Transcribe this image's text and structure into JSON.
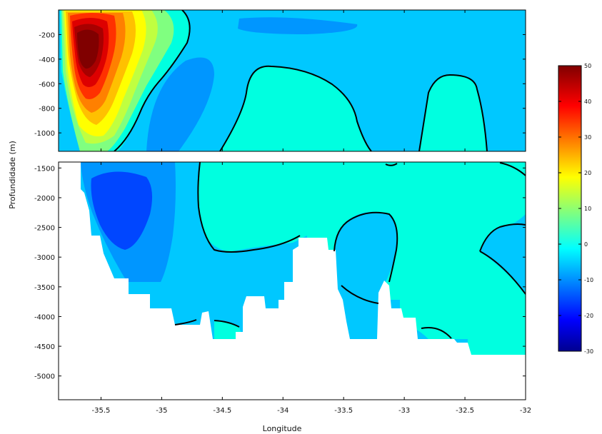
{
  "chart_data": {
    "type": "contour",
    "xlabel": "Longitude",
    "ylabel": "Profundidade (m)",
    "xlim": [
      -35.85,
      -32
    ],
    "x_ticks": [
      -35.5,
      -35,
      -34.5,
      -34,
      -33.5,
      -33,
      -32.5,
      -32
    ],
    "x_tick_labels": [
      "-35.5",
      "-35",
      "-34.5",
      "-34",
      "-33.5",
      "-33",
      "-32.5",
      "-32"
    ],
    "panels": [
      {
        "name": "upper",
        "ylim": [
          -1150,
          0
        ],
        "y_ticks": [
          -200,
          -400,
          -600,
          -800,
          -1000
        ],
        "y_tick_labels": [
          "-200",
          "-400",
          "-600",
          "-800",
          "-1000"
        ]
      },
      {
        "name": "lower",
        "ylim": [
          -5400,
          -1400
        ],
        "y_ticks": [
          -1500,
          -2000,
          -2500,
          -3000,
          -3500,
          -4000,
          -4500,
          -5000
        ],
        "y_tick_labels": [
          "-1500",
          "-2000",
          "-2500",
          "-3000",
          "-3500",
          "-4000",
          "-4500",
          "-5000"
        ]
      }
    ],
    "colorbar": {
      "min": -30,
      "max": 50,
      "ticks": [
        50,
        40,
        30,
        20,
        10,
        0,
        -10,
        -20,
        -30
      ],
      "tick_labels": [
        "50",
        "40",
        "30",
        "20",
        "10",
        "0",
        "-10",
        "-20",
        "-30"
      ],
      "colormap": "jet"
    },
    "features": {
      "max_core": {
        "lon": -35.57,
        "depth": -300,
        "value": 50
      },
      "min_core": {
        "lon": -35.3,
        "depth": -2100,
        "value": -18
      },
      "zero_contour_color": "#000000",
      "background_value": -3
    },
    "colors": {
      "background": "#00c8ff",
      "positive_tongue": "#00ffe0",
      "negative_cell": "#0096ff",
      "deep_negative": "#0046ff",
      "bathymetry": "#ffffff"
    }
  }
}
